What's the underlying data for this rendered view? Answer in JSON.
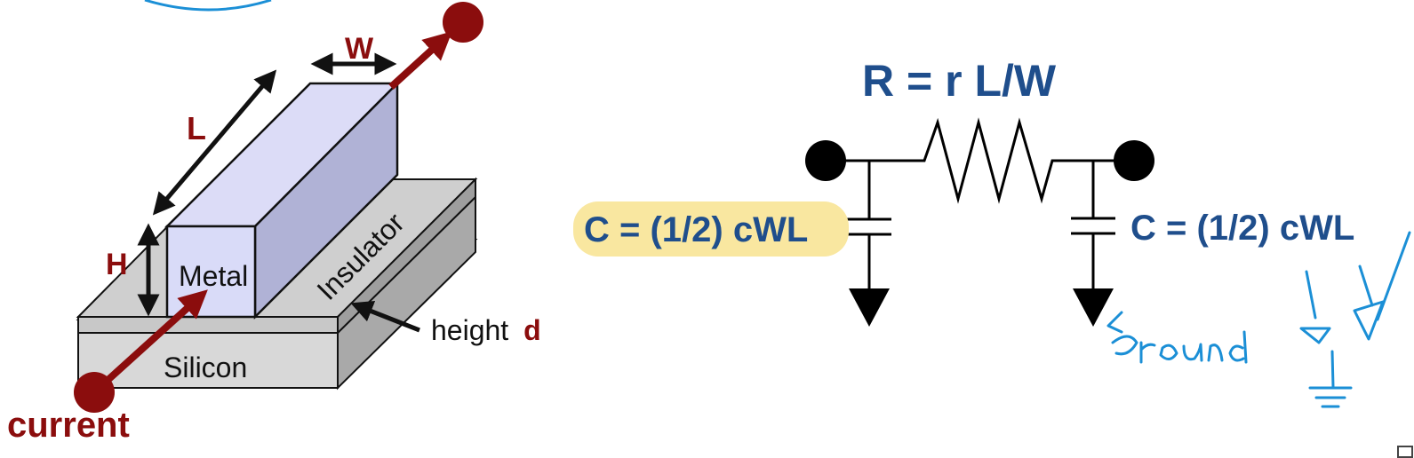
{
  "wire": {
    "width_label": "W",
    "length_label": "L",
    "height_label": "H",
    "metal_label": "Metal",
    "insulator_label": "Insulator",
    "silicon_label": "Silicon",
    "dielectric_height_text": "height",
    "dielectric_height_var": "d",
    "current_label": "current"
  },
  "circuit": {
    "resistance_formula": "R = r L/W",
    "capacitance_left": "C = (1/2) cWL",
    "capacitance_right": "C = (1/2) cWL"
  },
  "colors": {
    "dark_red": "#8b0d0d",
    "formula_blue": "#1f4e8c",
    "highlight_yellow": "#f9e7a0",
    "metal_front": "#d9dbf8",
    "metal_top": "#dcdcf7",
    "metal_side": "#b0b2d6",
    "ink_blue": "#1b8fd6"
  }
}
